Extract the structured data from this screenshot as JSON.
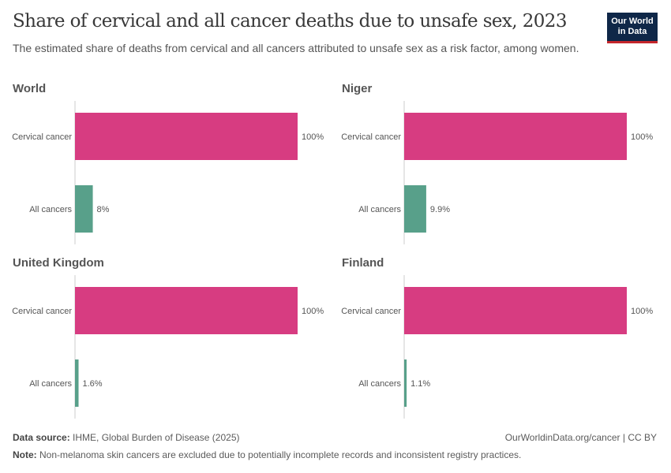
{
  "title": "Share of cervical and all cancer deaths due to unsafe sex, 2023",
  "subtitle": "The estimated share of deaths from cervical and all cancers attributed to unsafe sex as a risk factor, among women.",
  "logo": {
    "line1": "Our World",
    "line2": "in Data"
  },
  "footer": {
    "source_label": "Data source:",
    "source": "IHME, Global Burden of Disease (2025)",
    "url": "OurWorldinData.org/cancer | CC BY",
    "note_label": "Note:",
    "note": "Non-melanoma skin cancers are excluded due to potentially incomplete records and inconsistent registry practices."
  },
  "chart_data": {
    "type": "bar",
    "orientation": "horizontal",
    "categories": [
      "Cervical cancer",
      "All cancers"
    ],
    "colors": {
      "Cervical cancer": "#d73c81",
      "All cancers": "#58a08a"
    },
    "xlim": [
      0,
      100
    ],
    "unit": "%",
    "panels": [
      {
        "title": "World",
        "values": [
          100,
          8
        ],
        "labels": [
          "100%",
          "8%"
        ]
      },
      {
        "title": "Niger",
        "values": [
          100,
          9.9
        ],
        "labels": [
          "100%",
          "9.9%"
        ]
      },
      {
        "title": "United Kingdom",
        "values": [
          100,
          1.6
        ],
        "labels": [
          "100%",
          "1.6%"
        ]
      },
      {
        "title": "Finland",
        "values": [
          100,
          1.1
        ],
        "labels": [
          "100%",
          "1.1%"
        ]
      }
    ]
  }
}
